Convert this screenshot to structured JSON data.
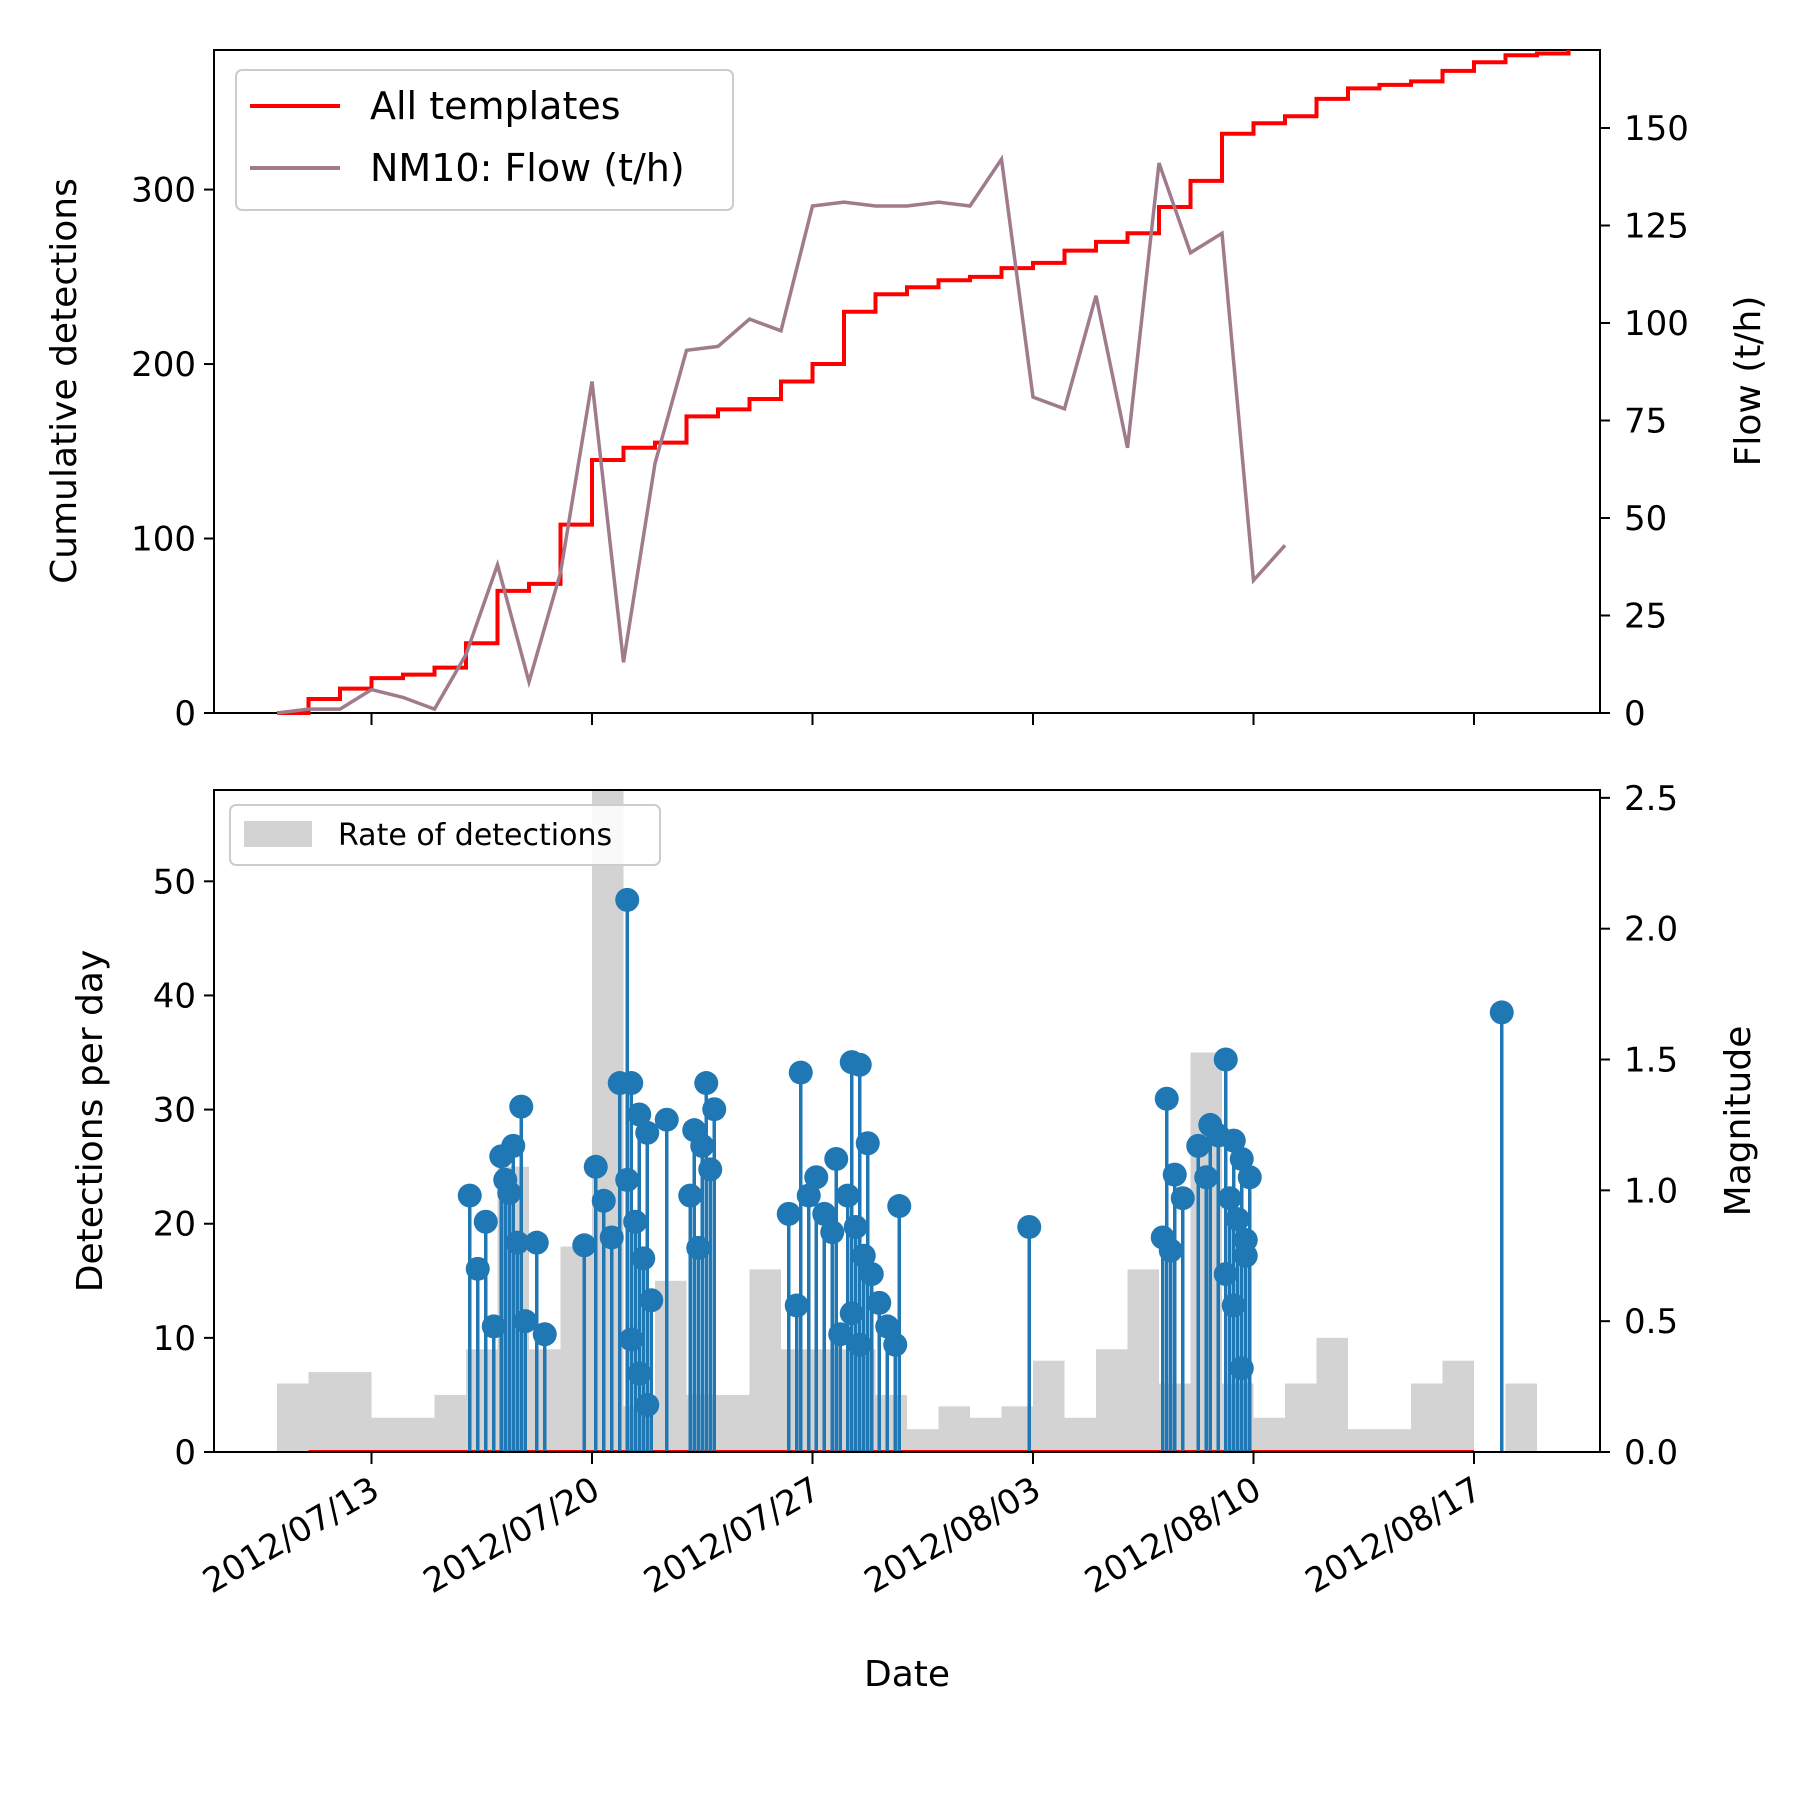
{
  "chart_data": [
    {
      "type": "line",
      "panel": "top",
      "xlabel": "",
      "ylabel": "Cumulative detections",
      "y2label": "Flow (t/h)",
      "x_start": "2012/07/08",
      "xlim": [
        "2012/07/08",
        "2012/08/21"
      ],
      "ylim": [
        0,
        380
      ],
      "y2lim": [
        0,
        170
      ],
      "yticks": [
        0,
        100,
        200,
        300
      ],
      "y2ticks": [
        0,
        25,
        50,
        75,
        100,
        125,
        150
      ],
      "legend": {
        "position": "top-left",
        "entries": [
          {
            "label": "All templates",
            "color": "#ff0000"
          },
          {
            "label": "NM10: Flow (t/h)",
            "color": "#a07b8c"
          }
        ]
      },
      "series": [
        {
          "name": "All templates",
          "axis": "left",
          "color": "#ff0000",
          "x": [
            "2012/07/10",
            "2012/07/11",
            "2012/07/12",
            "2012/07/13",
            "2012/07/14",
            "2012/07/15",
            "2012/07/16",
            "2012/07/16",
            "2012/07/17",
            "2012/07/17",
            "2012/07/17",
            "2012/07/18",
            "2012/07/19",
            "2012/07/19",
            "2012/07/20",
            "2012/07/20",
            "2012/07/21",
            "2012/07/21",
            "2012/07/22",
            "2012/07/23",
            "2012/07/23",
            "2012/07/24",
            "2012/07/25",
            "2012/07/26",
            "2012/07/27",
            "2012/07/28",
            "2012/07/28",
            "2012/07/29",
            "2012/07/30",
            "2012/07/31",
            "2012/08/01",
            "2012/08/02",
            "2012/08/03",
            "2012/08/04",
            "2012/08/05",
            "2012/08/06",
            "2012/08/07",
            "2012/08/08",
            "2012/08/08",
            "2012/08/09",
            "2012/08/09",
            "2012/08/10",
            "2012/08/11",
            "2012/08/12",
            "2012/08/12",
            "2012/08/13",
            "2012/08/14",
            "2012/08/15",
            "2012/08/16",
            "2012/08/16",
            "2012/08/17",
            "2012/08/18",
            "2012/08/19",
            "2012/08/20",
            "2012/08/20"
          ],
          "values": [
            0,
            8,
            14,
            20,
            22,
            26,
            32,
            40,
            62,
            68,
            70,
            74,
            80,
            108,
            130,
            145,
            150,
            152,
            155,
            166,
            170,
            174,
            180,
            190,
            200,
            212,
            230,
            240,
            244,
            248,
            250,
            255,
            258,
            265,
            270,
            275,
            290,
            298,
            305,
            306,
            332,
            338,
            342,
            346,
            352,
            358,
            360,
            362,
            365,
            368,
            373,
            377,
            378,
            380,
            380
          ]
        },
        {
          "name": "NM10: Flow (t/h)",
          "axis": "right",
          "color": "#a07b8c",
          "x": [
            "2012/07/10",
            "2012/07/11",
            "2012/07/12",
            "2012/07/13",
            "2012/07/14",
            "2012/07/15",
            "2012/07/16",
            "2012/07/17",
            "2012/07/18",
            "2012/07/19",
            "2012/07/20",
            "2012/07/21",
            "2012/07/22",
            "2012/07/23",
            "2012/07/24",
            "2012/07/25",
            "2012/07/26",
            "2012/07/27",
            "2012/07/28",
            "2012/07/29",
            "2012/07/30",
            "2012/07/31",
            "2012/08/01",
            "2012/08/02",
            "2012/08/03",
            "2012/08/04",
            "2012/08/05",
            "2012/08/06",
            "2012/08/07",
            "2012/08/08",
            "2012/08/09",
            "2012/08/10",
            "2012/08/11"
          ],
          "values": [
            0,
            1,
            1,
            6,
            4,
            1,
            15,
            38,
            8,
            36,
            85,
            13,
            64,
            93,
            94,
            101,
            98,
            130,
            131,
            130,
            130,
            131,
            130,
            142,
            81,
            78,
            107,
            68,
            141,
            118,
            123,
            34,
            43
          ]
        }
      ]
    },
    {
      "type": "bar",
      "panel": "bottom",
      "xlabel": "Date",
      "ylabel": "Detections per day",
      "y2label": "Magnitude",
      "xlim": [
        "2012/07/08",
        "2012/08/21"
      ],
      "ylim": [
        0,
        58
      ],
      "y2lim": [
        0,
        2.53
      ],
      "yticks": [
        0,
        10,
        20,
        30,
        40,
        50
      ],
      "y2ticks": [
        0.0,
        0.5,
        1.0,
        1.5,
        2.0,
        2.5
      ],
      "xticks": [
        "2012/07/13",
        "2012/07/20",
        "2012/07/27",
        "2012/08/03",
        "2012/08/10",
        "2012/08/17"
      ],
      "legend": {
        "position": "top-left",
        "entries": [
          {
            "label": "Rate of detections",
            "color": "#d3d3d3"
          }
        ]
      },
      "bars": {
        "name": "Rate of detections",
        "color": "#d3d3d3",
        "days": [
          "2012/07/10",
          "2012/07/11",
          "2012/07/12",
          "2012/07/13",
          "2012/07/14",
          "2012/07/15",
          "2012/07/16",
          "2012/07/17",
          "2012/07/18",
          "2012/07/19",
          "2012/07/20",
          "2012/07/21",
          "2012/07/22",
          "2012/07/23",
          "2012/07/24",
          "2012/07/25",
          "2012/07/26",
          "2012/07/27",
          "2012/07/28",
          "2012/07/29",
          "2012/07/30",
          "2012/07/31",
          "2012/08/01",
          "2012/08/02",
          "2012/08/03",
          "2012/08/04",
          "2012/08/05",
          "2012/08/06",
          "2012/08/07",
          "2012/08/08",
          "2012/08/09",
          "2012/08/10",
          "2012/08/11",
          "2012/08/12",
          "2012/08/13",
          "2012/08/14",
          "2012/08/15",
          "2012/08/16",
          "2012/08/17",
          "2012/08/18",
          "2012/08/19"
        ],
        "values": [
          6,
          7,
          7,
          3,
          3,
          5,
          9,
          25,
          9,
          18,
          58,
          4,
          15,
          5,
          5,
          16,
          9,
          9,
          9,
          5,
          2,
          4,
          3,
          4,
          8,
          3,
          9,
          16,
          6,
          35,
          6,
          3,
          6,
          10,
          2,
          2,
          6,
          8,
          0,
          6,
          0
        ]
      },
      "magnitudes": {
        "name": "Magnitude",
        "color": "#1f77b4",
        "axis": "right",
        "points": [
          [
            "2012/07/16",
            0.98
          ],
          [
            "2012/07/16",
            0.7
          ],
          [
            "2012/07/16",
            0.88
          ],
          [
            "2012/07/16",
            0.48
          ],
          [
            "2012/07/17",
            1.04
          ],
          [
            "2012/07/17",
            1.17
          ],
          [
            "2012/07/17",
            1.32
          ],
          [
            "2012/07/17",
            1.13
          ],
          [
            "2012/07/17",
            0.99
          ],
          [
            "2012/07/17",
            0.8
          ],
          [
            "2012/07/17",
            0.5
          ],
          [
            "2012/07/18",
            0.8
          ],
          [
            "2012/07/18",
            0.45
          ],
          [
            "2012/07/19",
            0.79
          ],
          [
            "2012/07/20",
            1.09
          ],
          [
            "2012/07/20",
            0.96
          ],
          [
            "2012/07/20",
            0.82
          ],
          [
            "2012/07/20",
            1.41
          ],
          [
            "2012/07/21",
            1.41
          ],
          [
            "2012/07/21",
            1.29
          ],
          [
            "2012/07/21",
            1.22
          ],
          [
            "2012/07/21",
            1.04
          ],
          [
            "2012/07/21",
            0.88
          ],
          [
            "2012/07/21",
            0.74
          ],
          [
            "2012/07/21",
            0.58
          ],
          [
            "2012/07/21",
            0.43
          ],
          [
            "2012/07/21",
            0.3
          ],
          [
            "2012/07/21",
            0.18
          ],
          [
            "2012/07/21",
            2.11
          ],
          [
            "2012/07/22",
            1.27
          ],
          [
            "2012/07/23",
            1.41
          ],
          [
            "2012/07/23",
            1.31
          ],
          [
            "2012/07/23",
            1.23
          ],
          [
            "2012/07/23",
            1.17
          ],
          [
            "2012/07/23",
            1.08
          ],
          [
            "2012/07/23",
            0.98
          ],
          [
            "2012/07/23",
            0.78
          ],
          [
            "2012/07/26",
            1.45
          ],
          [
            "2012/07/26",
            0.98
          ],
          [
            "2012/07/26",
            0.91
          ],
          [
            "2012/07/26",
            0.56
          ],
          [
            "2012/07/27",
            1.12
          ],
          [
            "2012/07/27",
            1.05
          ],
          [
            "2012/07/27",
            0.91
          ],
          [
            "2012/07/27",
            0.84
          ],
          [
            "2012/07/27",
            0.45
          ],
          [
            "2012/07/28",
            1.49
          ],
          [
            "2012/07/28",
            1.48
          ],
          [
            "2012/07/28",
            1.18
          ],
          [
            "2012/07/28",
            0.98
          ],
          [
            "2012/07/28",
            0.86
          ],
          [
            "2012/07/28",
            0.75
          ],
          [
            "2012/07/28",
            0.68
          ],
          [
            "2012/07/28",
            0.53
          ],
          [
            "2012/07/28",
            0.41
          ],
          [
            "2012/07/29",
            0.94
          ],
          [
            "2012/07/29",
            0.57
          ],
          [
            "2012/07/29",
            0.48
          ],
          [
            "2012/07/29",
            0.41
          ],
          [
            "2012/08/02",
            0.86
          ],
          [
            "2012/08/07",
            1.35
          ],
          [
            "2012/08/07",
            1.06
          ],
          [
            "2012/08/07",
            0.97
          ],
          [
            "2012/08/07",
            0.82
          ],
          [
            "2012/08/07",
            0.77
          ],
          [
            "2012/08/08",
            1.25
          ],
          [
            "2012/08/08",
            1.21
          ],
          [
            "2012/08/08",
            1.17
          ],
          [
            "2012/08/08",
            1.05
          ],
          [
            "2012/08/09",
            0.75
          ],
          [
            "2012/08/09",
            1.5
          ],
          [
            "2012/08/09",
            1.19
          ],
          [
            "2012/08/09",
            1.12
          ],
          [
            "2012/08/09",
            1.05
          ],
          [
            "2012/08/09",
            0.97
          ],
          [
            "2012/08/09",
            0.89
          ],
          [
            "2012/08/09",
            0.81
          ],
          [
            "2012/08/09",
            0.68
          ],
          [
            "2012/08/09",
            0.56
          ],
          [
            "2012/08/09",
            0.32
          ],
          [
            "2012/08/17",
            1.68
          ]
        ]
      }
    }
  ]
}
